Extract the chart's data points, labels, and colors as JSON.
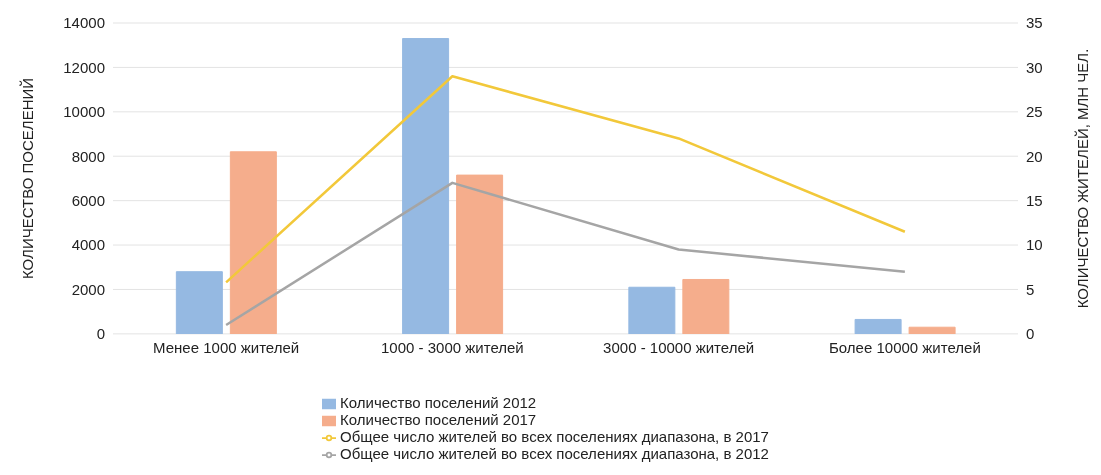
{
  "chart_data": {
    "type": "bar",
    "categories": [
      "Менее 1000 жителей",
      "1000 - 3000 жителей",
      "3000 - 10000 жителей",
      "Более 10000 жителей"
    ],
    "ylabel": "КОЛИЧЕСТВО ПОСЕЛЕНИЙ",
    "y2label": "КОЛИЧЕСТВО ЖИТЕЛЕЙ, МЛН  ЧЕЛ.",
    "ylim": [
      0,
      14000
    ],
    "yticks": [
      0,
      2000,
      4000,
      6000,
      8000,
      10000,
      12000,
      14000
    ],
    "y2lim": [
      0,
      35
    ],
    "y2ticks": [
      0,
      5,
      10,
      15,
      20,
      25,
      30,
      35
    ],
    "grid": "y",
    "legend": "bottom",
    "series": [
      {
        "name": "Количество поселений 2012",
        "color": "#95b9e2",
        "values": [
          2800,
          13300,
          2100,
          650
        ]
      },
      {
        "name": "Количество поселений 2017",
        "color": "#f5ad8c",
        "values": [
          8200,
          7150,
          2450,
          300
        ]
      },
      {
        "name": "Общее число жителей во всех поселениях диапазона, в 2017",
        "type": "line",
        "axis": "y2",
        "color": "#f2c83a",
        "values": [
          5.8,
          29,
          22,
          11.5
        ]
      },
      {
        "name": "Общее число жителей во всех поселениях диапазона, в 2012",
        "type": "line",
        "axis": "y2",
        "color": "#a5a5a5",
        "values": [
          1,
          17,
          9.5,
          7
        ]
      }
    ]
  }
}
